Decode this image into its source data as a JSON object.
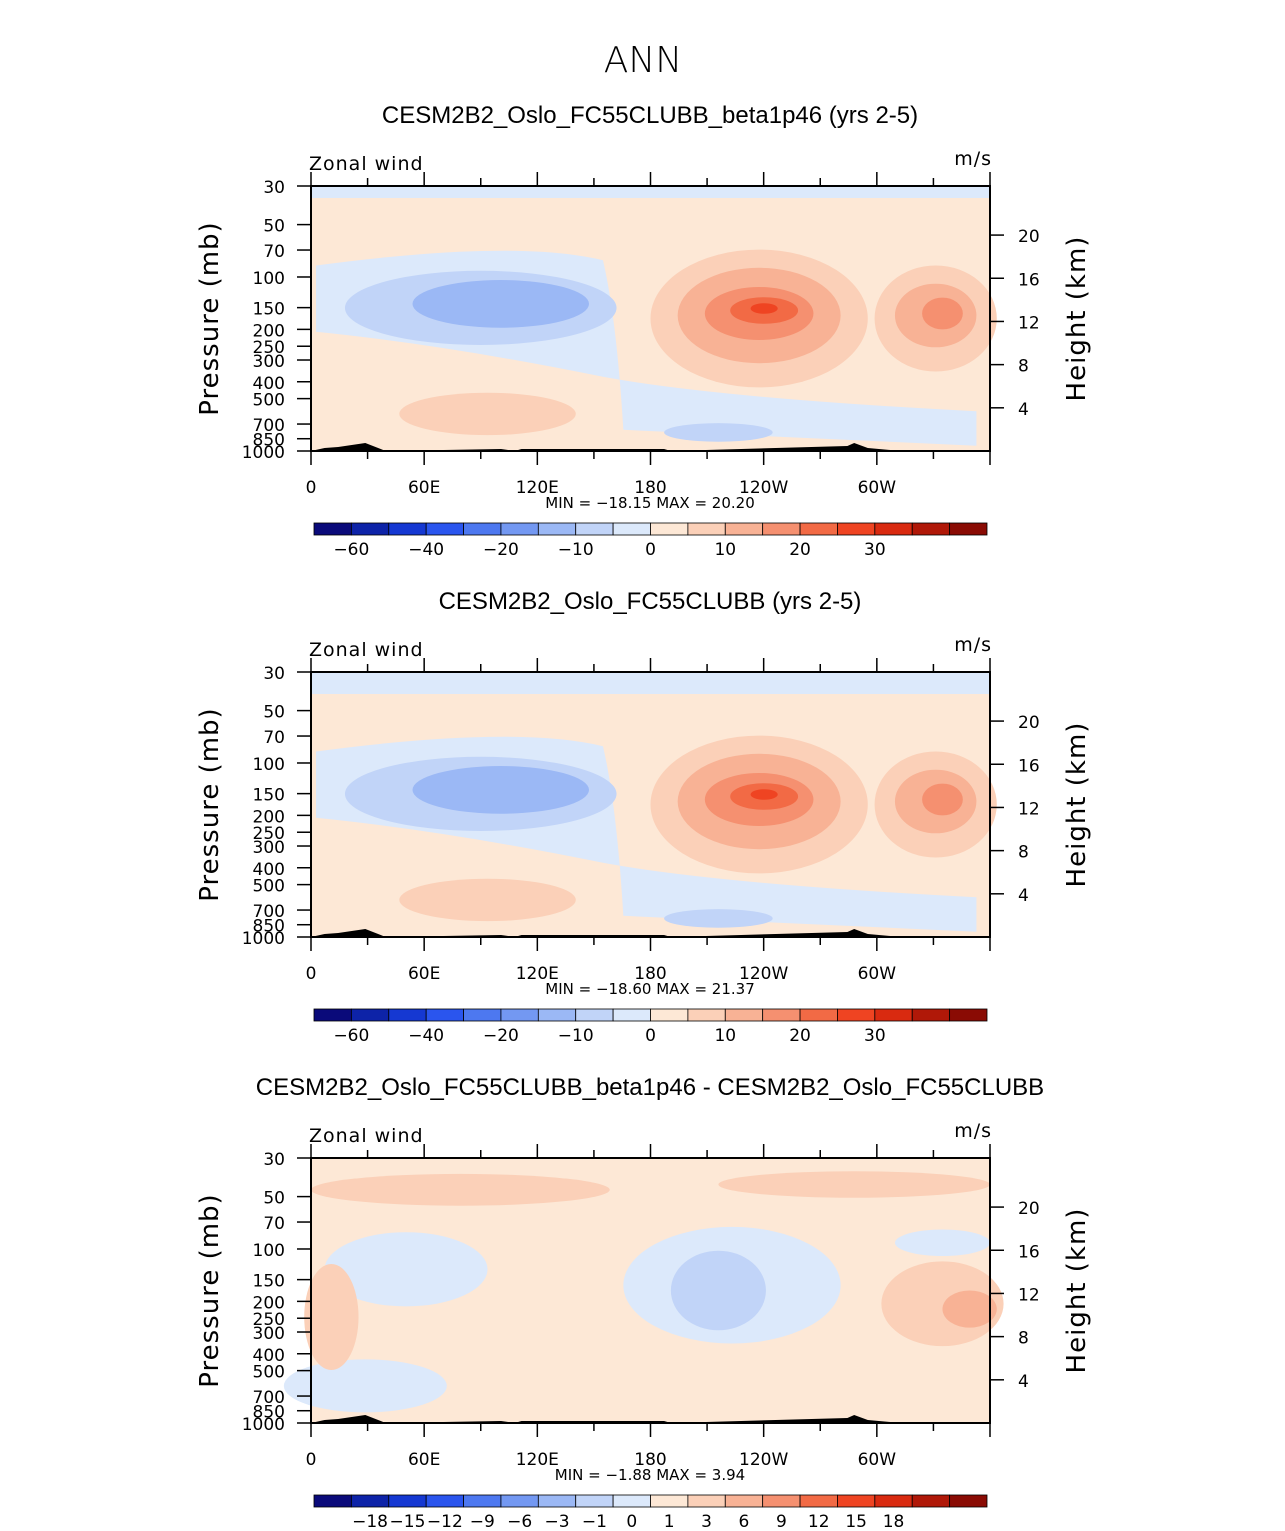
{
  "figure": {
    "season_title": "ANN"
  },
  "colors": {
    "blue_scale": [
      "#0a0a7a",
      "#0d23a8",
      "#1538d2",
      "#2a55ee",
      "#4d78f0",
      "#7398f2",
      "#9bb8f5",
      "#c1d4f8",
      "#dce9fb"
    ],
    "red_scale": [
      "#fde8d6",
      "#fbd0b8",
      "#f8b295",
      "#f59070",
      "#f26a45",
      "#ef4422",
      "#d92a10",
      "#b01808",
      "#8a0b04"
    ],
    "bg_light": "#fde8d6",
    "topo": "#000000"
  },
  "panels": [
    {
      "title": "CESM2B2_Oslo_FC55CLUBB_beta1p46 (yrs 2-5)",
      "left_label": "Zonal wind",
      "right_label": "m/s",
      "stats_text": "MIN =   −18.15   MAX =   20.20",
      "colorbar_labels": [
        "−60",
        "−40",
        "−20",
        "−10",
        "0",
        "10",
        "20",
        "30"
      ]
    },
    {
      "title": "CESM2B2_Oslo_FC55CLUBB (yrs 2-5)",
      "left_label": "Zonal wind",
      "right_label": "m/s",
      "stats_text": "MIN =   −18.60   MAX =   21.37",
      "colorbar_labels": [
        "−60",
        "−40",
        "−20",
        "−10",
        "0",
        "10",
        "20",
        "30"
      ]
    },
    {
      "title": "CESM2B2_Oslo_FC55CLUBB_beta1p46 - CESM2B2_Oslo_FC55CLUBB",
      "left_label": "Zonal wind",
      "right_label": "m/s",
      "stats_text": "MIN =    −1.88   MAX =     3.94",
      "colorbar_labels": [
        "−18",
        "−15",
        "−12",
        "−9",
        "−6",
        "−3",
        "−1",
        "0",
        "1",
        "3",
        "6",
        "9",
        "12",
        "15",
        "18"
      ]
    }
  ],
  "chart_data": [
    {
      "type": "heatmap",
      "title": "CESM2B2_Oslo_FC55CLUBB_beta1p46 (yrs 2-5)",
      "variable": "Zonal wind",
      "units": "m/s",
      "ylabel_left": "Pressure (mb)",
      "ylabel_right": "Height (km)",
      "x_ticks": [
        "0",
        "60E",
        "120E",
        "180",
        "120W",
        "60W"
      ],
      "y_ticks_pressure": [
        "30",
        "50",
        "70",
        "100",
        "150",
        "200",
        "250",
        "300",
        "400",
        "500",
        "700",
        "850",
        "1000"
      ],
      "y_ticks_height": [
        "20",
        "16",
        "12",
        "8",
        "4"
      ],
      "min": -18.15,
      "max": 20.2,
      "colorbar_levels": [
        -60,
        -40,
        -20,
        -10,
        0,
        10,
        20,
        30
      ]
    },
    {
      "type": "heatmap",
      "title": "CESM2B2_Oslo_FC55CLUBB (yrs 2-5)",
      "variable": "Zonal wind",
      "units": "m/s",
      "ylabel_left": "Pressure (mb)",
      "ylabel_right": "Height (km)",
      "x_ticks": [
        "0",
        "60E",
        "120E",
        "180",
        "120W",
        "60W"
      ],
      "y_ticks_pressure": [
        "30",
        "50",
        "70",
        "100",
        "150",
        "200",
        "250",
        "300",
        "400",
        "500",
        "700",
        "850",
        "1000"
      ],
      "y_ticks_height": [
        "20",
        "16",
        "12",
        "8",
        "4"
      ],
      "min": -18.6,
      "max": 21.37,
      "colorbar_levels": [
        -60,
        -40,
        -20,
        -10,
        0,
        10,
        20,
        30
      ]
    },
    {
      "type": "heatmap",
      "title": "CESM2B2_Oslo_FC55CLUBB_beta1p46 - CESM2B2_Oslo_FC55CLUBB",
      "variable": "Zonal wind",
      "units": "m/s",
      "ylabel_left": "Pressure (mb)",
      "ylabel_right": "Height (km)",
      "x_ticks": [
        "0",
        "60E",
        "120E",
        "180",
        "120W",
        "60W"
      ],
      "y_ticks_pressure": [
        "30",
        "50",
        "70",
        "100",
        "150",
        "200",
        "250",
        "300",
        "400",
        "500",
        "700",
        "850",
        "1000"
      ],
      "y_ticks_height": [
        "20",
        "16",
        "12",
        "8",
        "4"
      ],
      "min": -1.88,
      "max": 3.94,
      "colorbar_levels": [
        -18,
        -15,
        -12,
        -9,
        -6,
        -3,
        -1,
        0,
        1,
        3,
        6,
        9,
        12,
        15,
        18
      ]
    }
  ],
  "axis_text": {
    "x_ticks": [
      "0",
      "60E",
      "120E",
      "180",
      "120W",
      "60W"
    ],
    "pressure_ticks": [
      "30",
      "50",
      "70",
      "100",
      "150",
      "200",
      "250",
      "300",
      "400",
      "500",
      "700",
      "850",
      "1000"
    ],
    "height_ticks": [
      "20",
      "16",
      "12",
      "8",
      "4"
    ],
    "ylabel_left": "Pressure (mb)",
    "ylabel_right": "Height (km)"
  }
}
